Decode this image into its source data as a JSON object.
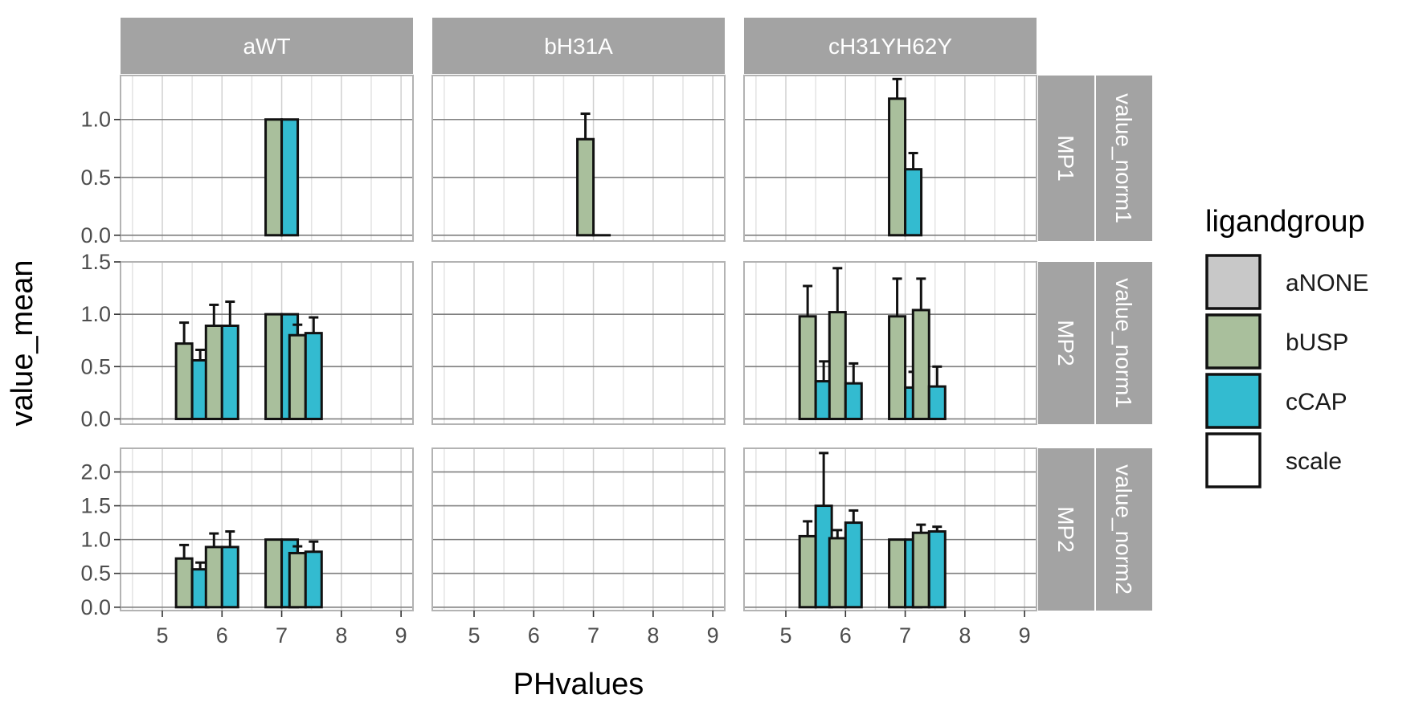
{
  "chart_data": {
    "type": "bar",
    "x_label": "PHvalues",
    "y_label": "value_mean",
    "column_facets": [
      "aWT",
      "bH31A",
      "cH31YH62Y"
    ],
    "row_facets": [
      {
        "inner": "MP1",
        "outer": "value_norm1",
        "ylim": [
          -0.05,
          1.38
        ],
        "yticks": [
          0.0,
          0.5,
          1.0
        ],
        "ytick_labels": [
          "0.0",
          "0.5",
          "1.0"
        ]
      },
      {
        "inner": "MP2",
        "outer": "value_norm1",
        "ylim": [
          -0.05,
          1.5
        ],
        "yticks": [
          0.0,
          0.5,
          1.0,
          1.5
        ],
        "ytick_labels": [
          "0.0",
          "0.5",
          "1.0",
          "1.5"
        ]
      },
      {
        "inner": "MP2",
        "outer": "value_norm2",
        "ylim": [
          -0.05,
          2.35
        ],
        "yticks": [
          0.0,
          0.5,
          1.0,
          1.5,
          2.0
        ],
        "ytick_labels": [
          "0.0",
          "0.5",
          "1.0",
          "1.5",
          "2.0"
        ]
      }
    ],
    "xlim": [
      4.3,
      9.2
    ],
    "xticks": [
      5,
      6,
      7,
      8,
      9
    ],
    "xtick_labels": [
      "5",
      "6",
      "7",
      "8",
      "9"
    ],
    "legend": {
      "title": "ligandgroup",
      "position": "right",
      "entries": [
        {
          "label": "aNONE",
          "color": "#c8c8c8"
        },
        {
          "label": "bUSP",
          "color": "#a9bf9c"
        },
        {
          "label": "cCAP",
          "color": "#33bbd0"
        },
        {
          "label": "scale",
          "color": "#ffffff"
        }
      ]
    },
    "grid": true,
    "panels": [
      {
        "row": 0,
        "col": 0,
        "bars": [
          {
            "x": 7.0,
            "group": "bUSP",
            "value": 1.0
          },
          {
            "x": 7.0,
            "group": "cCAP",
            "value": 1.0
          }
        ]
      },
      {
        "row": 0,
        "col": 1,
        "bars": [
          {
            "x": 7.0,
            "group": "bUSP",
            "value": 0.83,
            "err": 0.22
          },
          {
            "x": 7.0,
            "group": "cCAP",
            "value": 0.0
          }
        ]
      },
      {
        "row": 0,
        "col": 2,
        "bars": [
          {
            "x": 7.0,
            "group": "bUSP",
            "value": 1.18,
            "err": 0.17
          },
          {
            "x": 7.0,
            "group": "cCAP",
            "value": 0.57,
            "err": 0.14
          }
        ]
      },
      {
        "row": 1,
        "col": 0,
        "bars": [
          {
            "x": 5.5,
            "group": "bUSP",
            "value": 0.72,
            "err": 0.2
          },
          {
            "x": 5.5,
            "group": "cCAP",
            "value": 0.56,
            "err": 0.1
          },
          {
            "x": 6.0,
            "group": "bUSP",
            "value": 0.89,
            "err": 0.2
          },
          {
            "x": 6.0,
            "group": "cCAP",
            "value": 0.89,
            "err": 0.23
          },
          {
            "x": 7.0,
            "group": "bUSP",
            "value": 1.0
          },
          {
            "x": 7.0,
            "group": "cCAP",
            "value": 1.0
          },
          {
            "x": 7.4,
            "group": "bUSP",
            "value": 0.8,
            "err": 0.1
          },
          {
            "x": 7.4,
            "group": "cCAP",
            "value": 0.82,
            "err": 0.15
          }
        ]
      },
      {
        "row": 1,
        "col": 1,
        "bars": []
      },
      {
        "row": 1,
        "col": 2,
        "bars": [
          {
            "x": 5.5,
            "group": "bUSP",
            "value": 0.98,
            "err": 0.29
          },
          {
            "x": 5.5,
            "group": "cCAP",
            "value": 0.36,
            "err": 0.19
          },
          {
            "x": 6.0,
            "group": "bUSP",
            "value": 1.02,
            "err": 0.42
          },
          {
            "x": 6.0,
            "group": "cCAP",
            "value": 0.34,
            "err": 0.19
          },
          {
            "x": 7.0,
            "group": "bUSP",
            "value": 0.98,
            "err": 0.36
          },
          {
            "x": 7.0,
            "group": "cCAP",
            "value": 0.3,
            "err": 0.15
          },
          {
            "x": 7.4,
            "group": "bUSP",
            "value": 1.04,
            "err": 0.3
          },
          {
            "x": 7.4,
            "group": "cCAP",
            "value": 0.31,
            "err": 0.19
          }
        ]
      },
      {
        "row": 2,
        "col": 0,
        "bars": [
          {
            "x": 5.5,
            "group": "bUSP",
            "value": 0.72,
            "err": 0.2
          },
          {
            "x": 5.5,
            "group": "cCAP",
            "value": 0.56,
            "err": 0.1
          },
          {
            "x": 6.0,
            "group": "bUSP",
            "value": 0.89,
            "err": 0.2
          },
          {
            "x": 6.0,
            "group": "cCAP",
            "value": 0.89,
            "err": 0.23
          },
          {
            "x": 7.0,
            "group": "bUSP",
            "value": 1.0
          },
          {
            "x": 7.0,
            "group": "cCAP",
            "value": 1.0
          },
          {
            "x": 7.4,
            "group": "bUSP",
            "value": 0.8,
            "err": 0.1
          },
          {
            "x": 7.4,
            "group": "cCAP",
            "value": 0.82,
            "err": 0.15
          }
        ]
      },
      {
        "row": 2,
        "col": 1,
        "bars": []
      },
      {
        "row": 2,
        "col": 2,
        "bars": [
          {
            "x": 5.5,
            "group": "bUSP",
            "value": 1.05,
            "err": 0.22
          },
          {
            "x": 5.5,
            "group": "cCAP",
            "value": 1.5,
            "err": 0.78
          },
          {
            "x": 6.0,
            "group": "bUSP",
            "value": 1.02,
            "err": 0.12
          },
          {
            "x": 6.0,
            "group": "cCAP",
            "value": 1.25,
            "err": 0.18
          },
          {
            "x": 7.0,
            "group": "bUSP",
            "value": 1.0
          },
          {
            "x": 7.0,
            "group": "cCAP",
            "value": 1.0
          },
          {
            "x": 7.4,
            "group": "bUSP",
            "value": 1.1,
            "err": 0.12
          },
          {
            "x": 7.4,
            "group": "cCAP",
            "value": 1.12,
            "err": 0.07
          }
        ]
      }
    ]
  }
}
